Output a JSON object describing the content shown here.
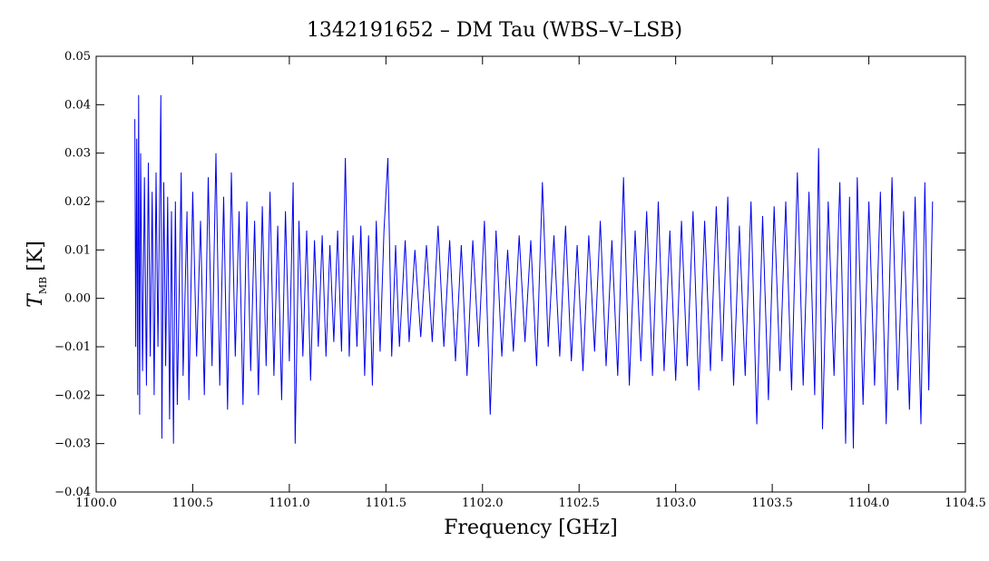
{
  "chart_data": {
    "type": "line",
    "title": "1342191652 – DM Tau (WBS–V–LSB)",
    "xlabel": "Frequency [GHz]",
    "ylabel_main": "T",
    "ylabel_sub": "MB",
    "ylabel_unit": "[K]",
    "xlim": [
      1100.0,
      1104.5
    ],
    "ylim": [
      -0.04,
      0.05
    ],
    "x_ticks": [
      1100.0,
      1100.5,
      1101.0,
      1101.5,
      1102.0,
      1102.5,
      1103.0,
      1103.5,
      1104.0,
      1104.5
    ],
    "x_tick_labels": [
      "1100.0",
      "1100.5",
      "1101.0",
      "1101.5",
      "1102.0",
      "1102.5",
      "1103.0",
      "1103.5",
      "1104.0",
      "1104.5"
    ],
    "y_ticks": [
      -0.04,
      -0.03,
      -0.02,
      -0.01,
      0.0,
      0.01,
      0.02,
      0.03,
      0.04,
      0.05
    ],
    "y_tick_labels": [
      "−0.04",
      "−0.03",
      "−0.02",
      "−0.01",
      "0.00",
      "0.01",
      "0.02",
      "0.03",
      "0.04",
      "0.05"
    ],
    "grid": false,
    "series": [
      {
        "color": "#0000ee",
        "x_start": 1100.2,
        "x_end": 1104.33,
        "points": [
          [
            1100.2,
            0.037
          ],
          [
            1100.205,
            -0.01
          ],
          [
            1100.21,
            0.033
          ],
          [
            1100.215,
            -0.02
          ],
          [
            1100.22,
            0.042
          ],
          [
            1100.225,
            -0.024
          ],
          [
            1100.23,
            0.03
          ],
          [
            1100.24,
            -0.015
          ],
          [
            1100.25,
            0.025
          ],
          [
            1100.26,
            -0.018
          ],
          [
            1100.27,
            0.028
          ],
          [
            1100.28,
            -0.012
          ],
          [
            1100.29,
            0.022
          ],
          [
            1100.3,
            -0.02
          ],
          [
            1100.31,
            0.026
          ],
          [
            1100.32,
            -0.01
          ],
          [
            1100.335,
            0.042
          ],
          [
            1100.34,
            -0.029
          ],
          [
            1100.35,
            0.024
          ],
          [
            1100.36,
            -0.014
          ],
          [
            1100.37,
            0.021
          ],
          [
            1100.38,
            -0.025
          ],
          [
            1100.39,
            0.018
          ],
          [
            1100.4,
            -0.03
          ],
          [
            1100.41,
            0.02
          ],
          [
            1100.42,
            -0.022
          ],
          [
            1100.44,
            0.026
          ],
          [
            1100.45,
            -0.016
          ],
          [
            1100.47,
            0.018
          ],
          [
            1100.48,
            -0.021
          ],
          [
            1100.5,
            0.022
          ],
          [
            1100.52,
            -0.012
          ],
          [
            1100.54,
            0.016
          ],
          [
            1100.56,
            -0.02
          ],
          [
            1100.58,
            0.025
          ],
          [
            1100.6,
            -0.014
          ],
          [
            1100.62,
            0.03
          ],
          [
            1100.64,
            -0.018
          ],
          [
            1100.66,
            0.021
          ],
          [
            1100.68,
            -0.023
          ],
          [
            1100.7,
            0.026
          ],
          [
            1100.72,
            -0.012
          ],
          [
            1100.74,
            0.018
          ],
          [
            1100.76,
            -0.022
          ],
          [
            1100.78,
            0.02
          ],
          [
            1100.8,
            -0.015
          ],
          [
            1100.82,
            0.016
          ],
          [
            1100.84,
            -0.02
          ],
          [
            1100.86,
            0.019
          ],
          [
            1100.88,
            -0.014
          ],
          [
            1100.9,
            0.022
          ],
          [
            1100.92,
            -0.016
          ],
          [
            1100.94,
            0.015
          ],
          [
            1100.96,
            -0.021
          ],
          [
            1100.98,
            0.018
          ],
          [
            1101.0,
            -0.013
          ],
          [
            1101.02,
            0.024
          ],
          [
            1101.03,
            -0.03
          ],
          [
            1101.05,
            0.016
          ],
          [
            1101.07,
            -0.012
          ],
          [
            1101.09,
            0.014
          ],
          [
            1101.11,
            -0.017
          ],
          [
            1101.13,
            0.012
          ],
          [
            1101.15,
            -0.01
          ],
          [
            1101.17,
            0.013
          ],
          [
            1101.19,
            -0.012
          ],
          [
            1101.21,
            0.011
          ],
          [
            1101.23,
            -0.009
          ],
          [
            1101.25,
            0.014
          ],
          [
            1101.27,
            -0.011
          ],
          [
            1101.29,
            0.029
          ],
          [
            1101.31,
            -0.012
          ],
          [
            1101.33,
            0.013
          ],
          [
            1101.35,
            -0.01
          ],
          [
            1101.37,
            0.015
          ],
          [
            1101.39,
            -0.016
          ],
          [
            1101.41,
            0.013
          ],
          [
            1101.43,
            -0.018
          ],
          [
            1101.45,
            0.016
          ],
          [
            1101.47,
            -0.011
          ],
          [
            1101.49,
            0.014
          ],
          [
            1101.51,
            0.029
          ],
          [
            1101.53,
            -0.012
          ],
          [
            1101.55,
            0.011
          ],
          [
            1101.57,
            -0.01
          ],
          [
            1101.6,
            0.012
          ],
          [
            1101.62,
            -0.009
          ],
          [
            1101.65,
            0.01
          ],
          [
            1101.68,
            -0.008
          ],
          [
            1101.71,
            0.011
          ],
          [
            1101.74,
            -0.009
          ],
          [
            1101.77,
            0.015
          ],
          [
            1101.8,
            -0.01
          ],
          [
            1101.83,
            0.012
          ],
          [
            1101.86,
            -0.013
          ],
          [
            1101.89,
            0.011
          ],
          [
            1101.92,
            -0.016
          ],
          [
            1101.95,
            0.012
          ],
          [
            1101.98,
            -0.01
          ],
          [
            1102.01,
            0.016
          ],
          [
            1102.04,
            -0.024
          ],
          [
            1102.07,
            0.014
          ],
          [
            1102.1,
            -0.012
          ],
          [
            1102.13,
            0.01
          ],
          [
            1102.16,
            -0.011
          ],
          [
            1102.19,
            0.013
          ],
          [
            1102.22,
            -0.009
          ],
          [
            1102.25,
            0.012
          ],
          [
            1102.28,
            -0.014
          ],
          [
            1102.31,
            0.024
          ],
          [
            1102.34,
            -0.01
          ],
          [
            1102.37,
            0.013
          ],
          [
            1102.4,
            -0.012
          ],
          [
            1102.43,
            0.015
          ],
          [
            1102.46,
            -0.013
          ],
          [
            1102.49,
            0.011
          ],
          [
            1102.52,
            -0.015
          ],
          [
            1102.55,
            0.013
          ],
          [
            1102.58,
            -0.011
          ],
          [
            1102.61,
            0.016
          ],
          [
            1102.64,
            -0.014
          ],
          [
            1102.67,
            0.012
          ],
          [
            1102.7,
            -0.016
          ],
          [
            1102.73,
            0.025
          ],
          [
            1102.76,
            -0.018
          ],
          [
            1102.79,
            0.014
          ],
          [
            1102.82,
            -0.013
          ],
          [
            1102.85,
            0.018
          ],
          [
            1102.88,
            -0.016
          ],
          [
            1102.91,
            0.02
          ],
          [
            1102.94,
            -0.015
          ],
          [
            1102.97,
            0.014
          ],
          [
            1103.0,
            -0.017
          ],
          [
            1103.03,
            0.016
          ],
          [
            1103.06,
            -0.014
          ],
          [
            1103.09,
            0.018
          ],
          [
            1103.12,
            -0.019
          ],
          [
            1103.15,
            0.016
          ],
          [
            1103.18,
            -0.015
          ],
          [
            1103.21,
            0.019
          ],
          [
            1103.24,
            -0.013
          ],
          [
            1103.27,
            0.021
          ],
          [
            1103.3,
            -0.018
          ],
          [
            1103.33,
            0.015
          ],
          [
            1103.36,
            -0.016
          ],
          [
            1103.39,
            0.02
          ],
          [
            1103.42,
            -0.026
          ],
          [
            1103.45,
            0.017
          ],
          [
            1103.48,
            -0.021
          ],
          [
            1103.51,
            0.019
          ],
          [
            1103.54,
            -0.015
          ],
          [
            1103.57,
            0.02
          ],
          [
            1103.6,
            -0.019
          ],
          [
            1103.63,
            0.026
          ],
          [
            1103.66,
            -0.018
          ],
          [
            1103.69,
            0.022
          ],
          [
            1103.72,
            -0.02
          ],
          [
            1103.74,
            0.031
          ],
          [
            1103.76,
            -0.027
          ],
          [
            1103.79,
            0.02
          ],
          [
            1103.82,
            -0.016
          ],
          [
            1103.85,
            0.024
          ],
          [
            1103.88,
            -0.03
          ],
          [
            1103.9,
            0.021
          ],
          [
            1103.92,
            -0.031
          ],
          [
            1103.94,
            0.025
          ],
          [
            1103.97,
            -0.022
          ],
          [
            1104.0,
            0.02
          ],
          [
            1104.03,
            -0.018
          ],
          [
            1104.06,
            0.022
          ],
          [
            1104.09,
            -0.026
          ],
          [
            1104.12,
            0.025
          ],
          [
            1104.15,
            -0.019
          ],
          [
            1104.18,
            0.018
          ],
          [
            1104.21,
            -0.023
          ],
          [
            1104.24,
            0.021
          ],
          [
            1104.27,
            -0.026
          ],
          [
            1104.29,
            0.024
          ],
          [
            1104.31,
            -0.019
          ],
          [
            1104.33,
            0.02
          ]
        ]
      }
    ]
  }
}
